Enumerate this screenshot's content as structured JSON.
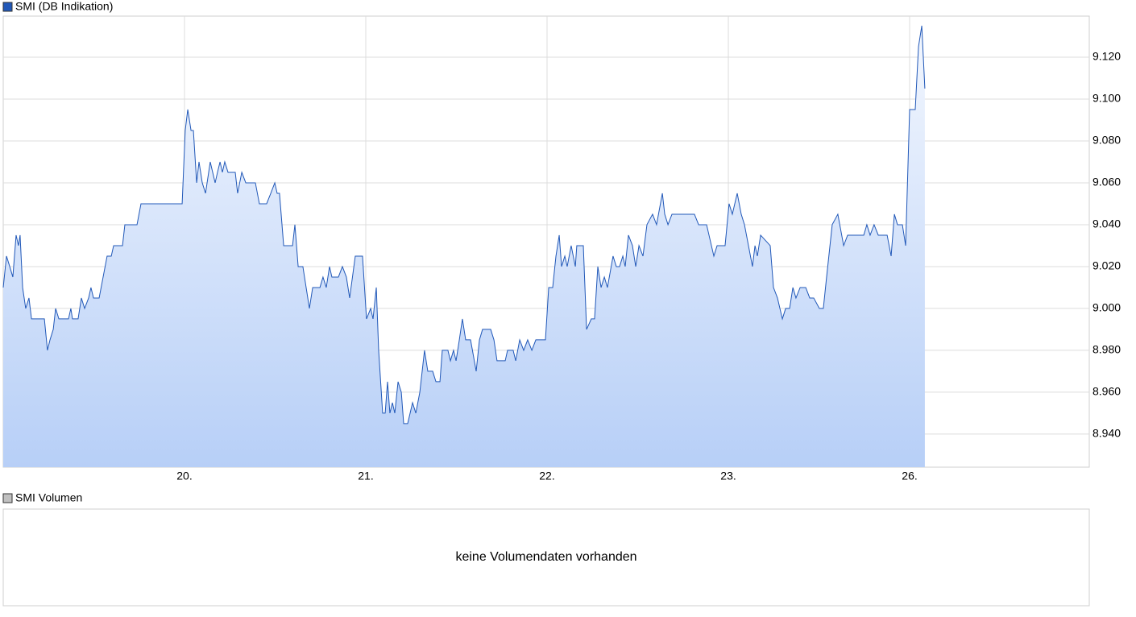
{
  "chart_data": {
    "type": "line",
    "series": [
      {
        "name": "SMI (DB Indikation)",
        "color": "#2158b8",
        "values": [
          9.01,
          9.025,
          9.02,
          9.015,
          9.035,
          9.03,
          9.035,
          9.01,
          9.0,
          9.005,
          8.995,
          8.995,
          8.98,
          8.985,
          8.99,
          9.0,
          8.995,
          8.995,
          9.0,
          8.995,
          8.995,
          9.005,
          9.0,
          9.005,
          9.01,
          9.005,
          9.005,
          9.015,
          9.025,
          9.025,
          9.03,
          9.03,
          9.04,
          9.04,
          9.05,
          9.05,
          9.085,
          9.095,
          9.085,
          9.085,
          9.06,
          9.07,
          9.06,
          9.055,
          9.07,
          9.06,
          9.065,
          9.07,
          9.065,
          9.07,
          9.065,
          9.065,
          9.055,
          9.065,
          9.06,
          9.06,
          9.05,
          9.05,
          9.055,
          9.06,
          9.055,
          9.055,
          9.03,
          9.03,
          9.04,
          9.02,
          9.02,
          9.01,
          9.0,
          9.01,
          9.01,
          9.015,
          9.01,
          9.02,
          9.015,
          9.015,
          9.02,
          9.015,
          9.005,
          9.025,
          9.025,
          8.995,
          9.0,
          8.995,
          9.01,
          8.98,
          8.95,
          8.95,
          8.965,
          8.95,
          8.955,
          8.95,
          8.965,
          8.96,
          8.945,
          8.945,
          8.955,
          8.95,
          8.96,
          8.98,
          8.97,
          8.97,
          8.965,
          8.965,
          8.98,
          8.98,
          8.975,
          8.98,
          8.975,
          8.985,
          8.995,
          8.985,
          8.985,
          8.97,
          8.985,
          8.99,
          8.99,
          8.985,
          8.975,
          8.975,
          8.98,
          8.98,
          8.975,
          8.985,
          8.98,
          8.985,
          8.98,
          8.985,
          8.985,
          9.01,
          9.01,
          9.025,
          9.035,
          9.02,
          9.025,
          9.02,
          9.03,
          9.02,
          9.03,
          9.03,
          8.99,
          8.995,
          8.995,
          9.02,
          9.01,
          9.015,
          9.01,
          9.025,
          9.02,
          9.02,
          9.025,
          9.02,
          9.035,
          9.03,
          9.02,
          9.03,
          9.025,
          9.04,
          9.045,
          9.04,
          9.055,
          9.045,
          9.04,
          9.045,
          9.045,
          9.04,
          9.04,
          9.025,
          9.03,
          9.03,
          9.05,
          9.045,
          9.055,
          9.045,
          9.04,
          9.03,
          9.02,
          9.03,
          9.025,
          9.035,
          9.03,
          9.01,
          9.005,
          8.995,
          9.0,
          9.0,
          9.01,
          9.005,
          9.01,
          9.01,
          9.005,
          9.005,
          9.0,
          9.0,
          9.015,
          9.04,
          9.045,
          9.03,
          9.035,
          9.035,
          9.04,
          9.035,
          9.04,
          9.035,
          9.035,
          9.025,
          9.045,
          9.04,
          9.04,
          9.03,
          9.095,
          9.095,
          9.125,
          9.135,
          9.105
        ]
      }
    ],
    "x": [
      0,
      0.018,
      0.036,
      0.053,
      0.071,
      0.084,
      0.093,
      0.107,
      0.124,
      0.142,
      0.156,
      0.227,
      0.244,
      0.258,
      0.276,
      0.289,
      0.307,
      0.36,
      0.373,
      0.382,
      0.413,
      0.431,
      0.449,
      0.471,
      0.484,
      0.498,
      0.529,
      0.551,
      0.573,
      0.596,
      0.609,
      0.658,
      0.671,
      0.738,
      0.76,
      0.987,
      1.004,
      1.018,
      1.036,
      1.049,
      1.067,
      1.08,
      1.098,
      1.116,
      1.142,
      1.169,
      1.182,
      1.196,
      1.209,
      1.222,
      1.24,
      1.28,
      1.293,
      1.316,
      1.338,
      1.391,
      1.413,
      1.453,
      1.476,
      1.498,
      1.511,
      1.524,
      1.547,
      1.596,
      1.609,
      1.627,
      1.653,
      1.671,
      1.689,
      1.707,
      1.747,
      1.764,
      1.782,
      1.8,
      1.813,
      1.849,
      1.871,
      1.893,
      1.911,
      1.942,
      1.982,
      2.004,
      2.027,
      2.04,
      2.058,
      2.071,
      2.093,
      2.107,
      2.12,
      2.133,
      2.147,
      2.16,
      2.178,
      2.196,
      2.209,
      2.231,
      2.258,
      2.276,
      2.298,
      2.324,
      2.342,
      2.369,
      2.387,
      2.409,
      2.422,
      2.453,
      2.467,
      2.484,
      2.498,
      2.516,
      2.533,
      2.551,
      2.578,
      2.609,
      2.627,
      2.644,
      2.689,
      2.707,
      2.724,
      2.769,
      2.782,
      2.813,
      2.827,
      2.849,
      2.871,
      2.893,
      2.916,
      2.938,
      2.991,
      3.009,
      3.031,
      3.049,
      3.067,
      3.08,
      3.098,
      3.111,
      3.133,
      3.156,
      3.164,
      3.2,
      3.218,
      3.244,
      3.262,
      3.28,
      3.298,
      3.316,
      3.333,
      3.364,
      3.382,
      3.4,
      3.418,
      3.431,
      3.449,
      3.471,
      3.489,
      3.507,
      3.529,
      3.551,
      3.582,
      3.604,
      3.636,
      3.649,
      3.667,
      3.689,
      3.813,
      3.836,
      3.88,
      3.92,
      3.938,
      3.982,
      4.004,
      4.022,
      4.049,
      4.071,
      4.089,
      4.111,
      4.133,
      4.147,
      4.16,
      4.178,
      4.231,
      4.249,
      4.271,
      4.298,
      4.316,
      4.338,
      4.356,
      4.373,
      4.396,
      4.427,
      4.449,
      4.471,
      4.502,
      4.524,
      4.542,
      4.573,
      4.604,
      4.636,
      4.658,
      4.747,
      4.764,
      4.782,
      4.804,
      4.827,
      4.876,
      4.898,
      4.916,
      4.933,
      4.96,
      4.978,
      5,
      5.031,
      5.049,
      5.067,
      5.084
    ],
    "xlim": [
      0,
      5.991
    ],
    "ylim": [
      8.9242,
      9.1396
    ],
    "xticks": [
      {
        "value": 1,
        "label": "20."
      },
      {
        "value": 2,
        "label": "21."
      },
      {
        "value": 3,
        "label": "22."
      },
      {
        "value": 4,
        "label": "23."
      },
      {
        "value": 5,
        "label": "26."
      }
    ],
    "yticks": [
      {
        "value": 8.94,
        "label": "8.940"
      },
      {
        "value": 8.96,
        "label": "8.960"
      },
      {
        "value": 8.98,
        "label": "8.980"
      },
      {
        "value": 9.0,
        "label": "9.000"
      },
      {
        "value": 9.02,
        "label": "9.020"
      },
      {
        "value": 9.04,
        "label": "9.040"
      },
      {
        "value": 9.06,
        "label": "9.060"
      },
      {
        "value": 9.08,
        "label": "9.080"
      },
      {
        "value": 9.1,
        "label": "9.100"
      },
      {
        "value": 9.12,
        "label": "9.120"
      }
    ],
    "grid": true
  },
  "volume_panel": {
    "title": "SMI Volumen",
    "message": "keine Volumendaten vorhanden"
  }
}
